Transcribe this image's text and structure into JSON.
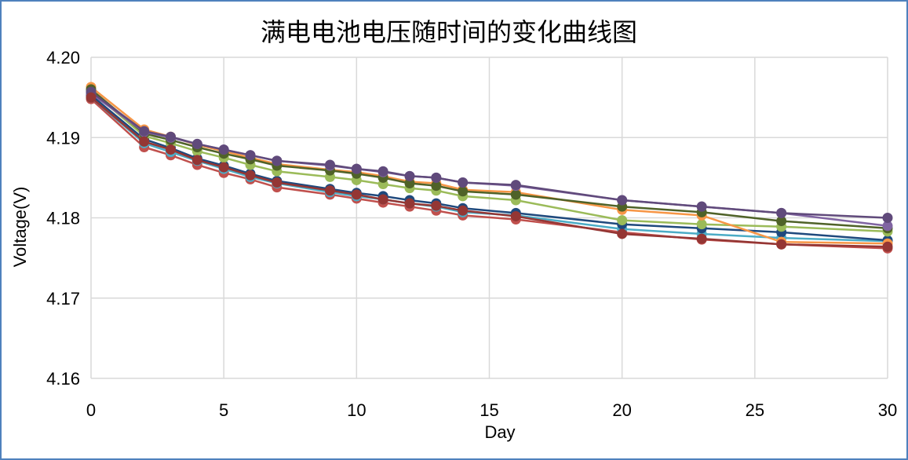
{
  "chart_data": {
    "type": "line",
    "title": "满电电池电压随时间的变化曲线图",
    "xlabel": "Day",
    "ylabel": "Voltage(V)",
    "xlim": [
      0,
      30
    ],
    "ylim": [
      4.16,
      4.2
    ],
    "x_ticks": [
      "0",
      "5",
      "10",
      "15",
      "20",
      "25",
      "30"
    ],
    "y_ticks": [
      "4.16",
      "4.17",
      "4.18",
      "4.19",
      "4.20"
    ],
    "grid": true,
    "legend": "none",
    "x": [
      0,
      2,
      3,
      4,
      5,
      6,
      7,
      9,
      10,
      11,
      12,
      13,
      14,
      16,
      20,
      23,
      26,
      30
    ],
    "series": [
      {
        "color": "#c0504d",
        "values": [
          4.1948,
          4.1888,
          4.1878,
          4.1866,
          4.1856,
          4.1848,
          4.1838,
          4.1829,
          4.1824,
          4.1819,
          4.1814,
          4.1809,
          4.1803,
          4.1798,
          4.1782,
          4.1773,
          4.1767,
          4.1762
        ]
      },
      {
        "color": "#4bacc6",
        "values": [
          4.195,
          4.1893,
          4.1882,
          4.1871,
          4.1861,
          4.1851,
          4.1843,
          4.1832,
          4.1827,
          4.1823,
          4.1818,
          4.1814,
          4.1807,
          4.1803,
          4.1786,
          4.178,
          4.1775,
          4.1771
        ]
      },
      {
        "color": "#1f497d",
        "values": [
          4.1953,
          4.1898,
          4.1887,
          4.1874,
          4.1865,
          4.1855,
          4.1846,
          4.1836,
          4.1831,
          4.1827,
          4.1822,
          4.1818,
          4.1812,
          4.1806,
          4.1792,
          4.1787,
          4.1782,
          4.1772
        ]
      },
      {
        "color": "#9bbb59",
        "values": [
          4.1958,
          4.1902,
          4.1893,
          4.1883,
          4.1875,
          4.1866,
          4.1858,
          4.1851,
          4.1847,
          4.1842,
          4.1837,
          4.1834,
          4.1827,
          4.1822,
          4.1797,
          4.1792,
          4.1789,
          4.1783
        ]
      },
      {
        "color": "#f79646",
        "values": [
          4.1963,
          4.191,
          4.1901,
          4.1891,
          4.1883,
          4.1875,
          4.1867,
          4.186,
          4.1857,
          4.1852,
          4.1845,
          4.1843,
          4.1835,
          4.1832,
          4.181,
          4.1803,
          4.177,
          4.1768
        ]
      },
      {
        "color": "#4f6228",
        "values": [
          4.196,
          4.1905,
          4.1897,
          4.1888,
          4.188,
          4.1873,
          4.1865,
          4.1859,
          4.1855,
          4.185,
          4.1843,
          4.184,
          4.1833,
          4.1829,
          4.1814,
          4.1807,
          4.1796,
          4.1787
        ]
      },
      {
        "color": "#8064a2",
        "values": [
          4.1955,
          4.1907,
          4.19,
          4.1892,
          4.1885,
          4.1878,
          4.1871,
          4.1865,
          4.1861,
          4.1857,
          4.1852,
          4.185,
          4.1844,
          4.184,
          4.1822,
          4.1814,
          4.1806,
          4.179
        ]
      },
      {
        "color": "#604a7b",
        "values": [
          4.1957,
          4.1908,
          4.1901,
          4.1892,
          4.1885,
          4.1878,
          4.1871,
          4.1866,
          4.1861,
          4.1858,
          4.1852,
          4.185,
          4.1844,
          4.1841,
          4.1822,
          4.1814,
          4.1806,
          4.18
        ]
      },
      {
        "color": "#943634",
        "values": [
          4.195,
          4.1895,
          4.1885,
          4.1872,
          4.1863,
          4.1853,
          4.1844,
          4.1834,
          4.1829,
          4.1823,
          4.1818,
          4.1815,
          4.1809,
          4.1802,
          4.178,
          4.1774,
          4.1767,
          4.1764
        ]
      }
    ]
  }
}
